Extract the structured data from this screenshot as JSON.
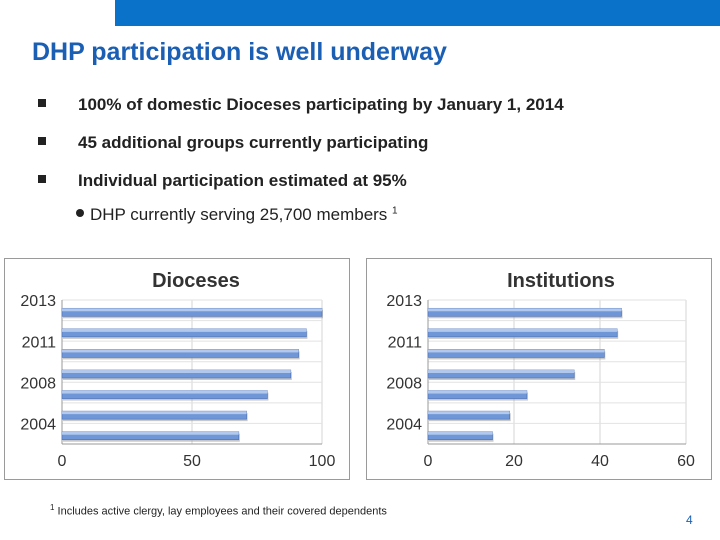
{
  "slide": {
    "title": "DHP participation is well underway",
    "bullets": [
      "100% of domestic Dioceses participating by January 1, 2014",
      "45 additional groups currently participating",
      "Individual participation estimated at 95%"
    ],
    "sub_bullet": "DHP currently serving 25,700 members",
    "sub_bullet_ref": "1",
    "footnote_ref": "1",
    "footnote": "Includes active clergy, lay employees and their covered dependents",
    "page_number": "4"
  },
  "colors": {
    "accent": "#0a72c8",
    "title": "#1a5fb4",
    "bar": "#6f96d6"
  },
  "chart_data": [
    {
      "type": "bar",
      "orientation": "horizontal",
      "title": "Dioceses",
      "categories": [
        "2013",
        "",
        "2011",
        "",
        "2008",
        "",
        "2004"
      ],
      "values": [
        100,
        94,
        91,
        88,
        79,
        71,
        68
      ],
      "xlim": [
        0,
        100
      ],
      "xticks": [
        "0",
        "50",
        "100"
      ],
      "grid": true
    },
    {
      "type": "bar",
      "orientation": "horizontal",
      "title": "Institutions",
      "categories": [
        "2013",
        "",
        "2011",
        "",
        "2008",
        "",
        "2004"
      ],
      "values": [
        45,
        44,
        41,
        34,
        23,
        19,
        15
      ],
      "xlim": [
        0,
        60
      ],
      "xticks": [
        "0",
        "20",
        "40",
        "60"
      ],
      "grid": true
    }
  ]
}
